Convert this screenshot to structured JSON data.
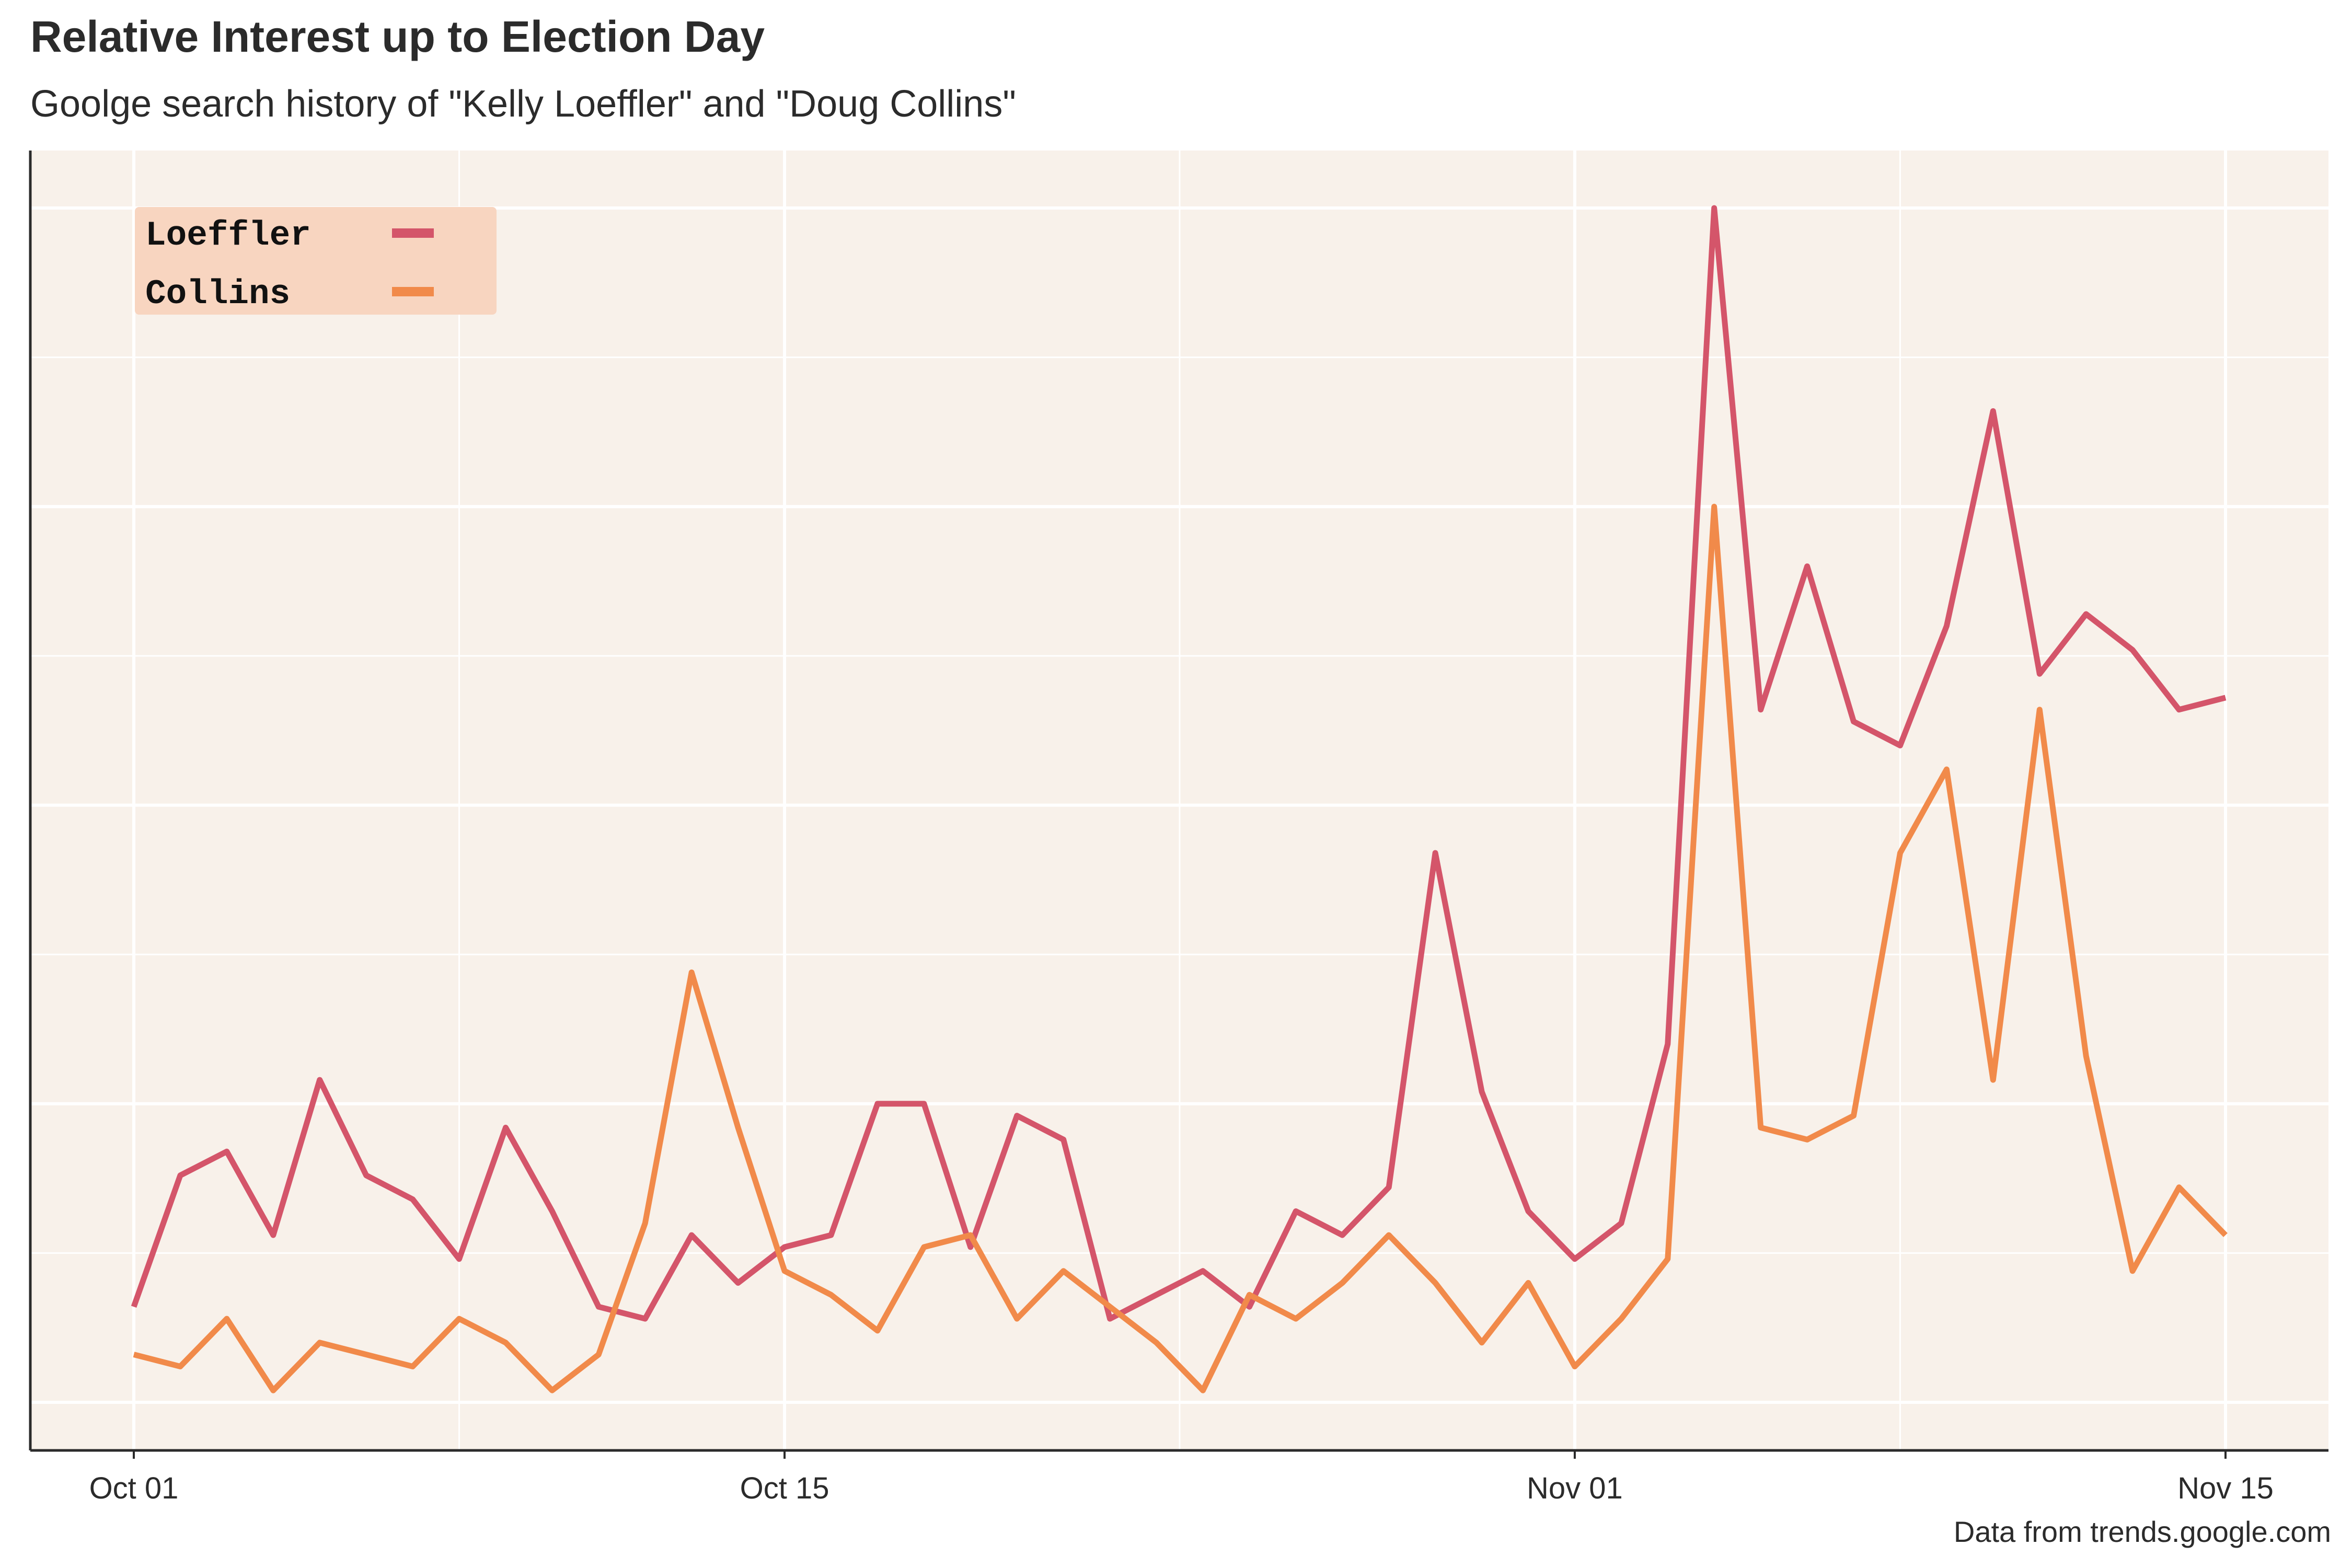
{
  "title": "Relative Interest up to Election Day",
  "subtitle": "Goolge search history of \"Kelly Loeffler\" and \"Doug Collins\"",
  "caption": "Data from trends.google.com",
  "colors": {
    "panel_background": "#f8f1ea",
    "grid": "#ffffff",
    "loeffler": "#d4556a",
    "collins": "#f18a4a",
    "legend_background": "#f8d5c0"
  },
  "chart_data": {
    "type": "line",
    "x": [
      "2020-10-01",
      "2020-10-02",
      "2020-10-03",
      "2020-10-04",
      "2020-10-05",
      "2020-10-06",
      "2020-10-07",
      "2020-10-08",
      "2020-10-09",
      "2020-10-10",
      "2020-10-11",
      "2020-10-12",
      "2020-10-13",
      "2020-10-14",
      "2020-10-15",
      "2020-10-16",
      "2020-10-17",
      "2020-10-18",
      "2020-10-19",
      "2020-10-20",
      "2020-10-21",
      "2020-10-22",
      "2020-10-23",
      "2020-10-24",
      "2020-10-25",
      "2020-10-26",
      "2020-10-27",
      "2020-10-28",
      "2020-10-29",
      "2020-10-30",
      "2020-10-31",
      "2020-11-01",
      "2020-11-02",
      "2020-11-03",
      "2020-11-04",
      "2020-11-05",
      "2020-11-06",
      "2020-11-07",
      "2020-11-08",
      "2020-11-09",
      "2020-11-10",
      "2020-11-11",
      "2020-11-12",
      "2020-11-13",
      "2020-11-14",
      "2020-11-15"
    ],
    "series": [
      {
        "name": "Loeffler",
        "values": [
          8,
          19,
          21,
          14,
          27,
          19,
          17,
          12,
          23,
          16,
          8,
          7,
          14,
          10,
          13,
          14,
          25,
          25,
          13,
          24,
          22,
          7,
          9,
          11,
          8,
          16,
          14,
          18,
          46,
          26,
          16,
          12,
          15,
          30,
          100,
          58,
          70,
          57,
          55,
          65,
          83,
          61,
          66,
          63,
          58,
          59
        ]
      },
      {
        "name": "Collins",
        "values": [
          4,
          3,
          7,
          1,
          5,
          4,
          3,
          7,
          5,
          1,
          4,
          15,
          36,
          23,
          11,
          9,
          6,
          13,
          14,
          7,
          11,
          8,
          5,
          1,
          9,
          7,
          10,
          14,
          10,
          5,
          10,
          3,
          7,
          12,
          75,
          23,
          22,
          24,
          46,
          53,
          27,
          58,
          29,
          11,
          18,
          14
        ]
      }
    ],
    "x_ticks": [
      "Oct 01",
      "Oct 15",
      "Nov 01",
      "Nov 15"
    ],
    "ylim": [
      0,
      100
    ],
    "grid": true,
    "legend_position": "top-left",
    "legend": [
      "Loeffler",
      "Collins"
    ],
    "xlabel": "",
    "ylabel": ""
  }
}
